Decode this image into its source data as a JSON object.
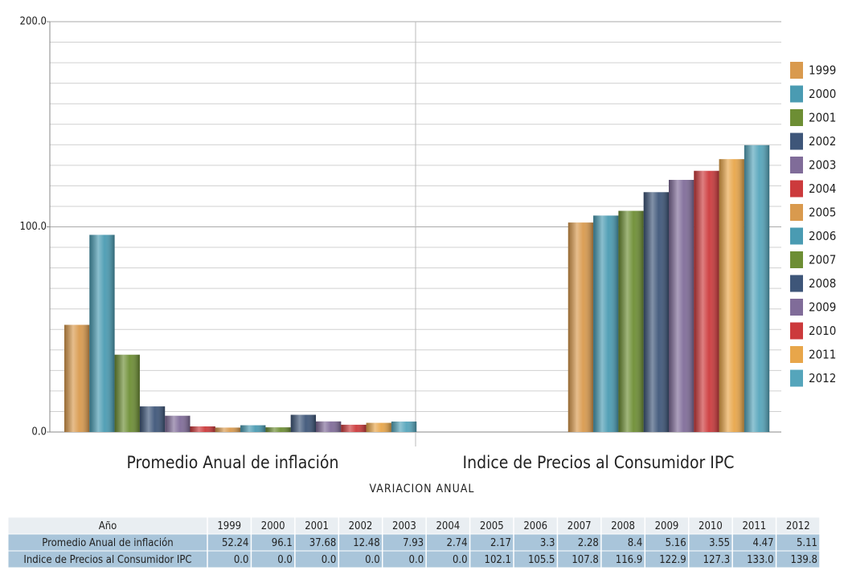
{
  "chart_data": {
    "type": "bar",
    "categories": [
      "Promedio Anual de inflación",
      "Indice de Precios al Consumidor IPC"
    ],
    "series": [
      {
        "name": "1999",
        "color": "#d99a4e",
        "values": [
          52.24,
          0
        ],
        "value_labels": [
          "52.24",
          "0.0"
        ]
      },
      {
        "name": "2000",
        "color": "#4a9bb2",
        "values": [
          96.1,
          0
        ],
        "value_labels": [
          "96.1",
          "0.0"
        ]
      },
      {
        "name": "2001",
        "color": "#6d8e34",
        "values": [
          37.68,
          0
        ],
        "value_labels": [
          "37.68",
          "0.0"
        ]
      },
      {
        "name": "2002",
        "color": "#3e5679",
        "values": [
          12.48,
          0
        ],
        "value_labels": [
          "12.48",
          "0.0"
        ]
      },
      {
        "name": "2003",
        "color": "#806c99",
        "values": [
          7.93,
          0
        ],
        "value_labels": [
          "7.93",
          "0.0"
        ]
      },
      {
        "name": "2004",
        "color": "#cc3a3c",
        "values": [
          2.74,
          0
        ],
        "value_labels": [
          "2.74",
          "0.0"
        ]
      },
      {
        "name": "2005",
        "color": "#d99a4e",
        "values": [
          2.17,
          102.1
        ],
        "value_labels": [
          "2.17",
          "102.1"
        ]
      },
      {
        "name": "2006",
        "color": "#4a9bb2",
        "values": [
          3.3,
          105.5
        ],
        "value_labels": [
          "3.3",
          "105.5"
        ]
      },
      {
        "name": "2007",
        "color": "#6d8e34",
        "values": [
          2.28,
          107.8
        ],
        "value_labels": [
          "2.28",
          "107.8"
        ]
      },
      {
        "name": "2008",
        "color": "#3e5679",
        "values": [
          8.4,
          116.9
        ],
        "value_labels": [
          "8.4",
          "116.9"
        ]
      },
      {
        "name": "2009",
        "color": "#806c99",
        "values": [
          5.16,
          122.9
        ],
        "value_labels": [
          "5.16",
          "122.9"
        ]
      },
      {
        "name": "2010",
        "color": "#cc3a3c",
        "values": [
          3.55,
          127.3
        ],
        "value_labels": [
          "3.55",
          "127.3"
        ]
      },
      {
        "name": "2011",
        "color": "#e8a64a",
        "values": [
          4.47,
          133.0
        ],
        "value_labels": [
          "4.47",
          "133.0"
        ]
      },
      {
        "name": "2012",
        "color": "#55a5bb",
        "values": [
          5.11,
          139.8
        ],
        "value_labels": [
          "5.11",
          "139.8"
        ]
      }
    ],
    "xlabel": "VARIACION ANUAL",
    "table_header": "Año",
    "ylim": [
      0,
      200
    ],
    "yticks": [
      {
        "value": 0,
        "label": "0.0"
      },
      {
        "value": 100,
        "label": "100.0"
      },
      {
        "value": 200,
        "label": "200.0"
      }
    ],
    "grid": true,
    "legend": "right"
  }
}
